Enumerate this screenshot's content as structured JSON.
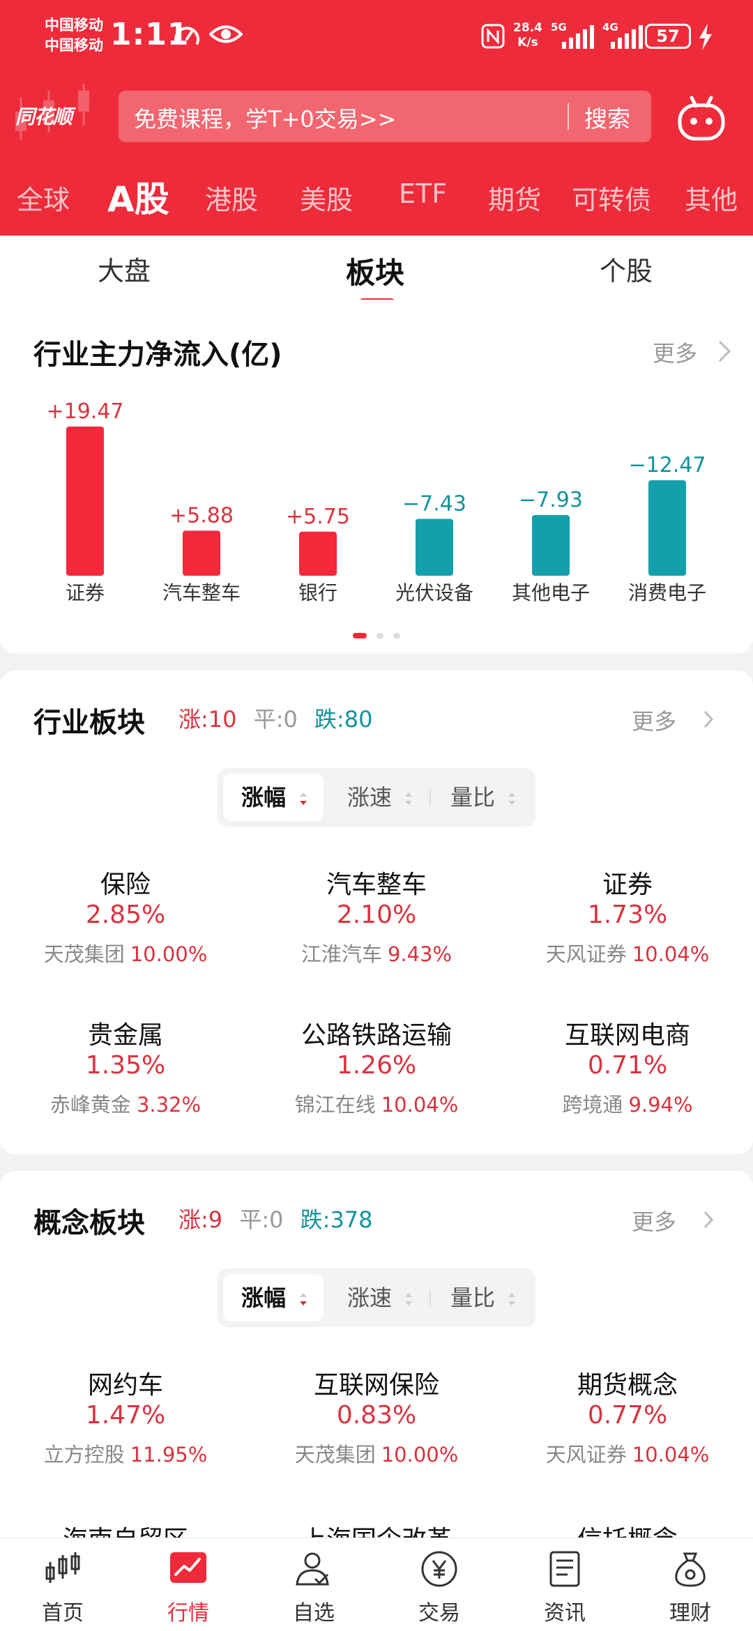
{
  "status_bar": {
    "carrier1": "中国移动",
    "carrier2": "中国移动",
    "time": "1:11",
    "net_speed_value": "28.4",
    "net_speed_unit": "K/s",
    "sig1_label": "5G",
    "sig2_label": "4G",
    "battery": "57"
  },
  "header": {
    "logo": "同花顺",
    "search_placeholder": "免费课程，学T+0交易>>",
    "search_button": "搜索",
    "robot_icon": "robot-icon"
  },
  "market_tabs": [
    "全球",
    "A股",
    "港股",
    "美股",
    "ETF",
    "期货",
    "可转债",
    "其他"
  ],
  "market_tab_active": "A股",
  "sub_tabs": [
    "大盘",
    "板块",
    "个股"
  ],
  "sub_tab_active": "板块",
  "flow": {
    "title": "行业主力净流入(亿)",
    "more": "更多",
    "pages": 3,
    "active_page": 0
  },
  "chart_data": {
    "type": "bar",
    "categories": [
      "证券",
      "汽车整车",
      "银行",
      "光伏设备",
      "其他电子",
      "消费电子"
    ],
    "values": [
      19.47,
      5.88,
      5.75,
      -7.43,
      -7.93,
      -12.47
    ],
    "value_labels": [
      "+19.47",
      "+5.88",
      "+5.75",
      "−7.43",
      "−7.93",
      "−12.47"
    ],
    "colors": {
      "positive": "#f5283c",
      "negative": "#14a0ab"
    },
    "ylim": [
      0,
      19.47
    ]
  },
  "industry": {
    "title": "行业板块",
    "up_label": "涨:10",
    "flat_label": "平:0",
    "down_label": "跌:80",
    "more": "更多",
    "sort": [
      "涨幅",
      "涨速",
      "量比"
    ],
    "items": [
      {
        "name": "保险",
        "pct": "2.85%",
        "stock": "天茂集团",
        "stock_pct": "10.00%"
      },
      {
        "name": "汽车整车",
        "pct": "2.10%",
        "stock": "江淮汽车",
        "stock_pct": "9.43%"
      },
      {
        "name": "证券",
        "pct": "1.73%",
        "stock": "天风证券",
        "stock_pct": "10.04%"
      },
      {
        "name": "贵金属",
        "pct": "1.35%",
        "stock": "赤峰黄金",
        "stock_pct": "3.32%"
      },
      {
        "name": "公路铁路运输",
        "pct": "1.26%",
        "stock": "锦江在线",
        "stock_pct": "10.04%"
      },
      {
        "name": "互联网电商",
        "pct": "0.71%",
        "stock": "跨境通",
        "stock_pct": "9.94%"
      }
    ]
  },
  "concept": {
    "title": "概念板块",
    "up_label": "涨:9",
    "flat_label": "平:0",
    "down_label": "跌:378",
    "more": "更多",
    "sort": [
      "涨幅",
      "涨速",
      "量比"
    ],
    "items": [
      {
        "name": "网约车",
        "pct": "1.47%",
        "stock": "立方控股",
        "stock_pct": "11.95%"
      },
      {
        "name": "互联网保险",
        "pct": "0.83%",
        "stock": "天茂集团",
        "stock_pct": "10.00%"
      },
      {
        "name": "期货概念",
        "pct": "0.77%",
        "stock": "天风证券",
        "stock_pct": "10.04%"
      },
      {
        "name": "海南自贸区"
      },
      {
        "name": "上海国企改革"
      },
      {
        "name": "信托概念"
      }
    ]
  },
  "bottom_nav": [
    {
      "label": "首页",
      "icon": "candlestick-icon"
    },
    {
      "label": "行情",
      "icon": "market-chart-icon"
    },
    {
      "label": "自选",
      "icon": "user-check-icon"
    },
    {
      "label": "交易",
      "icon": "yen-coin-icon"
    },
    {
      "label": "资讯",
      "icon": "news-document-icon"
    },
    {
      "label": "理财",
      "icon": "money-bag-icon"
    }
  ],
  "bottom_nav_active": "行情"
}
